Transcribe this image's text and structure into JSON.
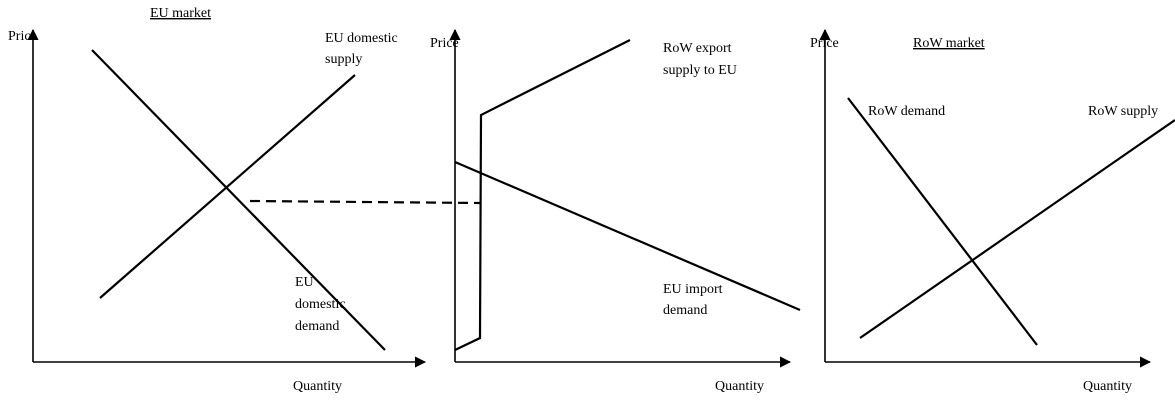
{
  "panels": [
    {
      "title": "EU market",
      "y_axis": "Price",
      "x_axis": "Quantity",
      "labels": [
        [
          "EU domestic",
          "supply"
        ],
        [
          "EU",
          "domestic",
          "demand"
        ]
      ]
    },
    {
      "y_axis": "Price",
      "x_axis": "Quantity",
      "labels": [
        [
          "RoW export",
          "supply to EU"
        ],
        [
          "EU import",
          "demand"
        ]
      ]
    },
    {
      "title": "RoW market",
      "y_axis": "Price",
      "x_axis": "Quantity",
      "labels": [
        [
          "RoW demand"
        ],
        [
          "RoW supply"
        ]
      ]
    }
  ]
}
